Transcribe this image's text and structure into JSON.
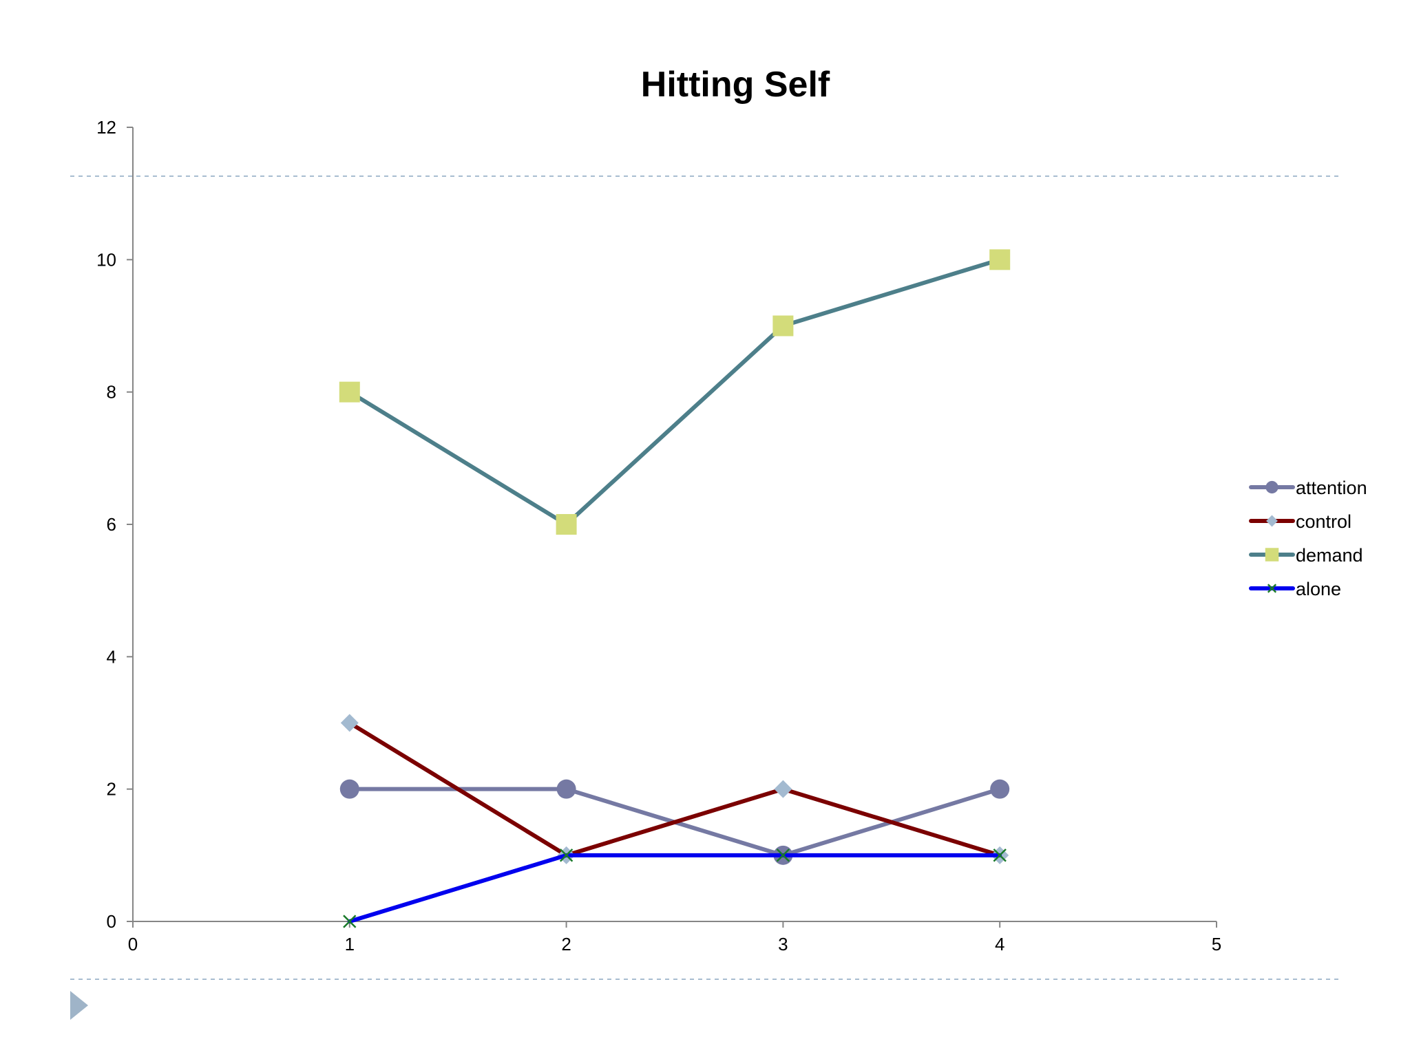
{
  "slide": {
    "accent_color": "#a7bcd0",
    "background_color": "#ffffff",
    "nav_icon": "triangle-right-icon"
  },
  "chart_data": {
    "type": "line",
    "title": "Hitting Self",
    "xlabel": "",
    "ylabel": "",
    "xlim": [
      0,
      5
    ],
    "ylim": [
      0,
      12
    ],
    "x_ticks": [
      0,
      1,
      2,
      3,
      4,
      5
    ],
    "y_ticks": [
      0,
      2,
      4,
      6,
      8,
      10,
      12
    ],
    "grid": false,
    "legend_position": "right",
    "series": [
      {
        "name": "attention",
        "x": [
          1,
          2,
          3,
          4
        ],
        "values": [
          2,
          2,
          1,
          2
        ],
        "line_color": "#7579a3",
        "marker": "circle",
        "marker_color": "#7579a3"
      },
      {
        "name": "control",
        "x": [
          1,
          2,
          3,
          4
        ],
        "values": [
          3,
          1,
          2,
          1
        ],
        "line_color": "#7b0000",
        "marker": "diamond",
        "marker_color": "#a3bad0"
      },
      {
        "name": "demand",
        "x": [
          1,
          2,
          3,
          4
        ],
        "values": [
          8,
          6,
          9,
          10
        ],
        "line_color": "#4d7f8a",
        "marker": "square",
        "marker_color": "#d3dc7a"
      },
      {
        "name": "alone",
        "x": [
          1,
          2,
          3,
          4
        ],
        "values": [
          0,
          1,
          1,
          1
        ],
        "line_color": "#0000ee",
        "marker": "x",
        "marker_color": "#1a7a2a"
      }
    ]
  }
}
